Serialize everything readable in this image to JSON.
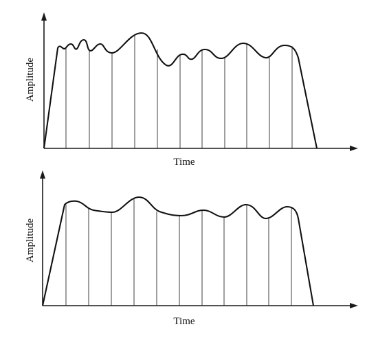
{
  "panels": [
    {
      "id": "top",
      "xlabel": "Time",
      "ylabel": "Amplitude",
      "description_kind": "natural sampling (varying tops)"
    },
    {
      "id": "bottom",
      "xlabel": "Time",
      "ylabel": "Amplitude",
      "description_kind": "smoothed sampling"
    }
  ]
}
